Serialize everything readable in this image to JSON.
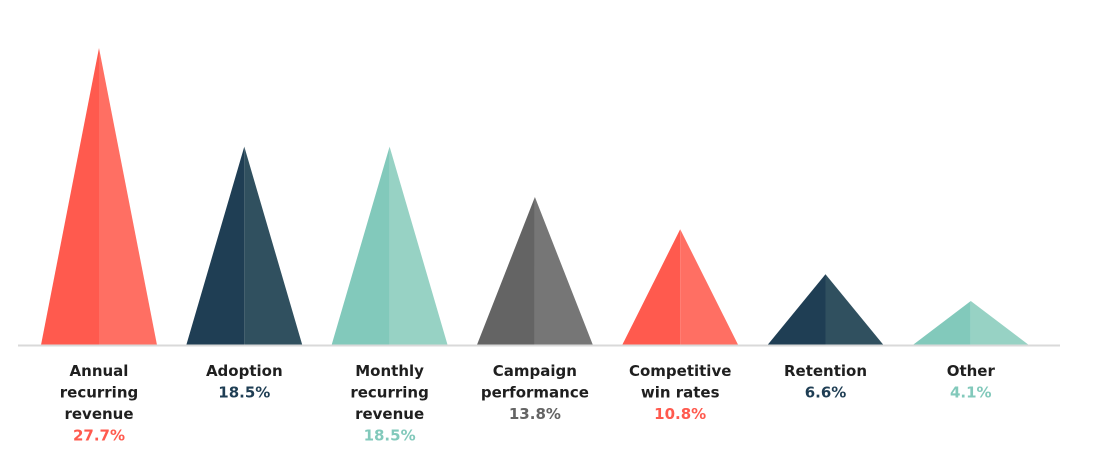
{
  "chart_data": {
    "type": "bar",
    "mark_shape": "triangle",
    "title": "",
    "xlabel": "",
    "ylabel": "",
    "ylim": [
      0,
      27.7
    ],
    "grid": false,
    "legend": "none",
    "baseline_color": "#d9d9d9",
    "categories": [
      "Annual recurring revenue",
      "Adoption",
      "Monthly recurring revenue",
      "Campaign performance",
      "Competitive win rates",
      "Retention",
      "Other"
    ],
    "category_lines": [
      [
        "Annual",
        "recurring",
        "revenue"
      ],
      [
        "Adoption"
      ],
      [
        "Monthly",
        "recurring",
        "revenue"
      ],
      [
        "Campaign",
        "performance"
      ],
      [
        "Competitive",
        "win rates"
      ],
      [
        "Retention"
      ],
      [
        "Other"
      ]
    ],
    "values": [
      27.7,
      18.5,
      18.5,
      13.8,
      10.8,
      6.6,
      4.1
    ],
    "value_labels": [
      "27.7%",
      "18.5%",
      "18.5%",
      "13.8%",
      "10.8%",
      "6.6%",
      "4.1%"
    ],
    "colors": [
      {
        "left": "#ff5a4e",
        "right": "#ff6f63",
        "label": "#ff5a4e"
      },
      {
        "left": "#1f3e54",
        "right": "#30505f",
        "label": "#1f3e54"
      },
      {
        "left": "#82c9bb",
        "right": "#97d2c4",
        "label": "#82c9bb"
      },
      {
        "left": "#646464",
        "right": "#767676",
        "label": "#646464"
      },
      {
        "left": "#ff5a4e",
        "right": "#ff6f63",
        "label": "#ff5a4e"
      },
      {
        "left": "#1f3e54",
        "right": "#30505f",
        "label": "#1f3e54"
      },
      {
        "left": "#82c9bb",
        "right": "#97d2c4",
        "label": "#82c9bb"
      }
    ]
  }
}
